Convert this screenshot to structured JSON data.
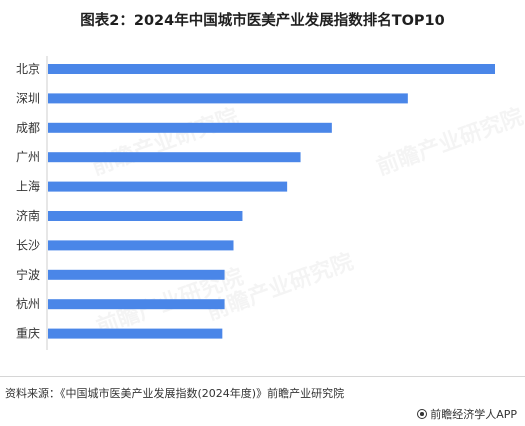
{
  "title": "图表2：2024年中国城市医美产业发展指数排名TOP10",
  "chart_data": {
    "type": "bar",
    "orientation": "horizontal",
    "title": "图表2：2024年中国城市医美产业发展指数排名TOP10",
    "categories": [
      "北京",
      "深圳",
      "成都",
      "广州",
      "上海",
      "济南",
      "长沙",
      "宁波",
      "杭州",
      "重庆"
    ],
    "values": [
      100,
      80.5,
      63.5,
      56.5,
      53.5,
      43.5,
      41.5,
      39.5,
      39.5,
      39.0
    ],
    "xlim": [
      0,
      100
    ],
    "bar_color": "#4a86e8",
    "grid": false,
    "x_axis_visible": false,
    "legend": "none"
  },
  "watermark": {
    "text": "前瞻产业研究院"
  },
  "footer": {
    "source": "资料来源：《中国城市医美产业发展指数(2024年度)》前瞻产业研究院",
    "credit": "前瞻经济学人APP"
  }
}
